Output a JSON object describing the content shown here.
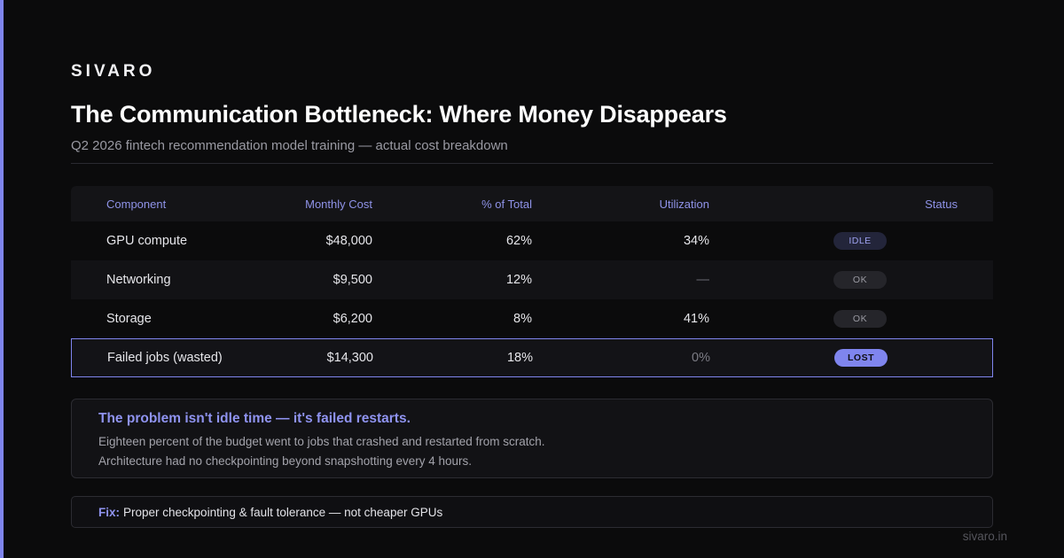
{
  "brand": "SIVARO",
  "title": "The Communication Bottleneck: Where Money Disappears",
  "subtitle": "Q2 2026 fintech recommendation model training — actual cost breakdown",
  "table": {
    "headers": {
      "component": "Component",
      "monthly_cost": "Monthly Cost",
      "pct_total": "% of Total",
      "utilization": "Utilization",
      "status": "Status"
    },
    "rows": [
      {
        "component": "GPU compute",
        "monthly_cost": "$48,000",
        "pct_total": "62%",
        "utilization": "34%",
        "status": "IDLE"
      },
      {
        "component": "Networking",
        "monthly_cost": "$9,500",
        "pct_total": "12%",
        "utilization": "—",
        "status": "OK"
      },
      {
        "component": "Storage",
        "monthly_cost": "$6,200",
        "pct_total": "8%",
        "utilization": "41%",
        "status": "OK"
      },
      {
        "component": "Failed jobs (wasted)",
        "monthly_cost": "$14,300",
        "pct_total": "18%",
        "utilization": "0%",
        "status": "LOST"
      }
    ]
  },
  "callout": {
    "title": "The problem isn't idle time — it's failed restarts.",
    "line1": "Eighteen percent of the budget went to jobs that crashed and restarted from scratch.",
    "line2": "Architecture had no checkpointing beyond snapshotting every 4 hours."
  },
  "fix": {
    "label": "Fix:",
    "text": "Proper checkpointing & fault tolerance — not cheaper GPUs"
  },
  "footer": {
    "url": "sivaro.in"
  },
  "colors": {
    "accent": "#7f85ee",
    "background": "#0b0b0c"
  }
}
